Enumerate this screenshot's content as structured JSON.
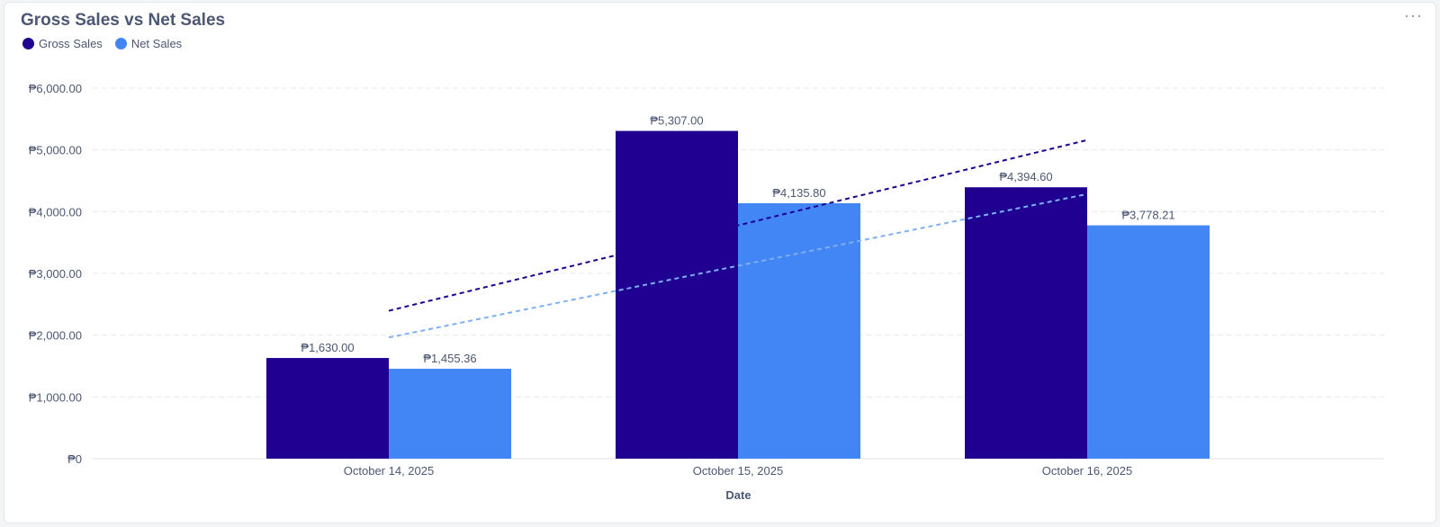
{
  "card": {
    "title": "Gross Sales vs Net Sales",
    "more_label": "···"
  },
  "chart_data": {
    "type": "bar",
    "title": "Gross Sales vs Net Sales",
    "xlabel": "Date",
    "ylabel": "",
    "categories": [
      "October 14, 2025",
      "October 15, 2025",
      "October 16, 2025"
    ],
    "series": [
      {
        "name": "Gross Sales",
        "color": "#1f0090",
        "values": [
          1630.0,
          5307.0,
          4394.6
        ],
        "labels": [
          "₱1,630.00",
          "₱5,307.00",
          "₱4,394.60"
        ],
        "trendline": true
      },
      {
        "name": "Net Sales",
        "color": "#4285f4",
        "values": [
          1455.36,
          4135.8,
          3778.21
        ],
        "labels": [
          "₱1,455.36",
          "₱4,135.80",
          "₱3,778.21"
        ],
        "trendline": true
      }
    ],
    "ylim": [
      0,
      6000
    ],
    "yticks": [
      0,
      1000,
      2000,
      3000,
      4000,
      5000,
      6000
    ],
    "ytick_labels": [
      "₱0",
      "₱1,000.00",
      "₱2,000.00",
      "₱3,000.00",
      "₱4,000.00",
      "₱5,000.00",
      "₱6,000.00"
    ],
    "grid": true,
    "legend": "top-left"
  }
}
